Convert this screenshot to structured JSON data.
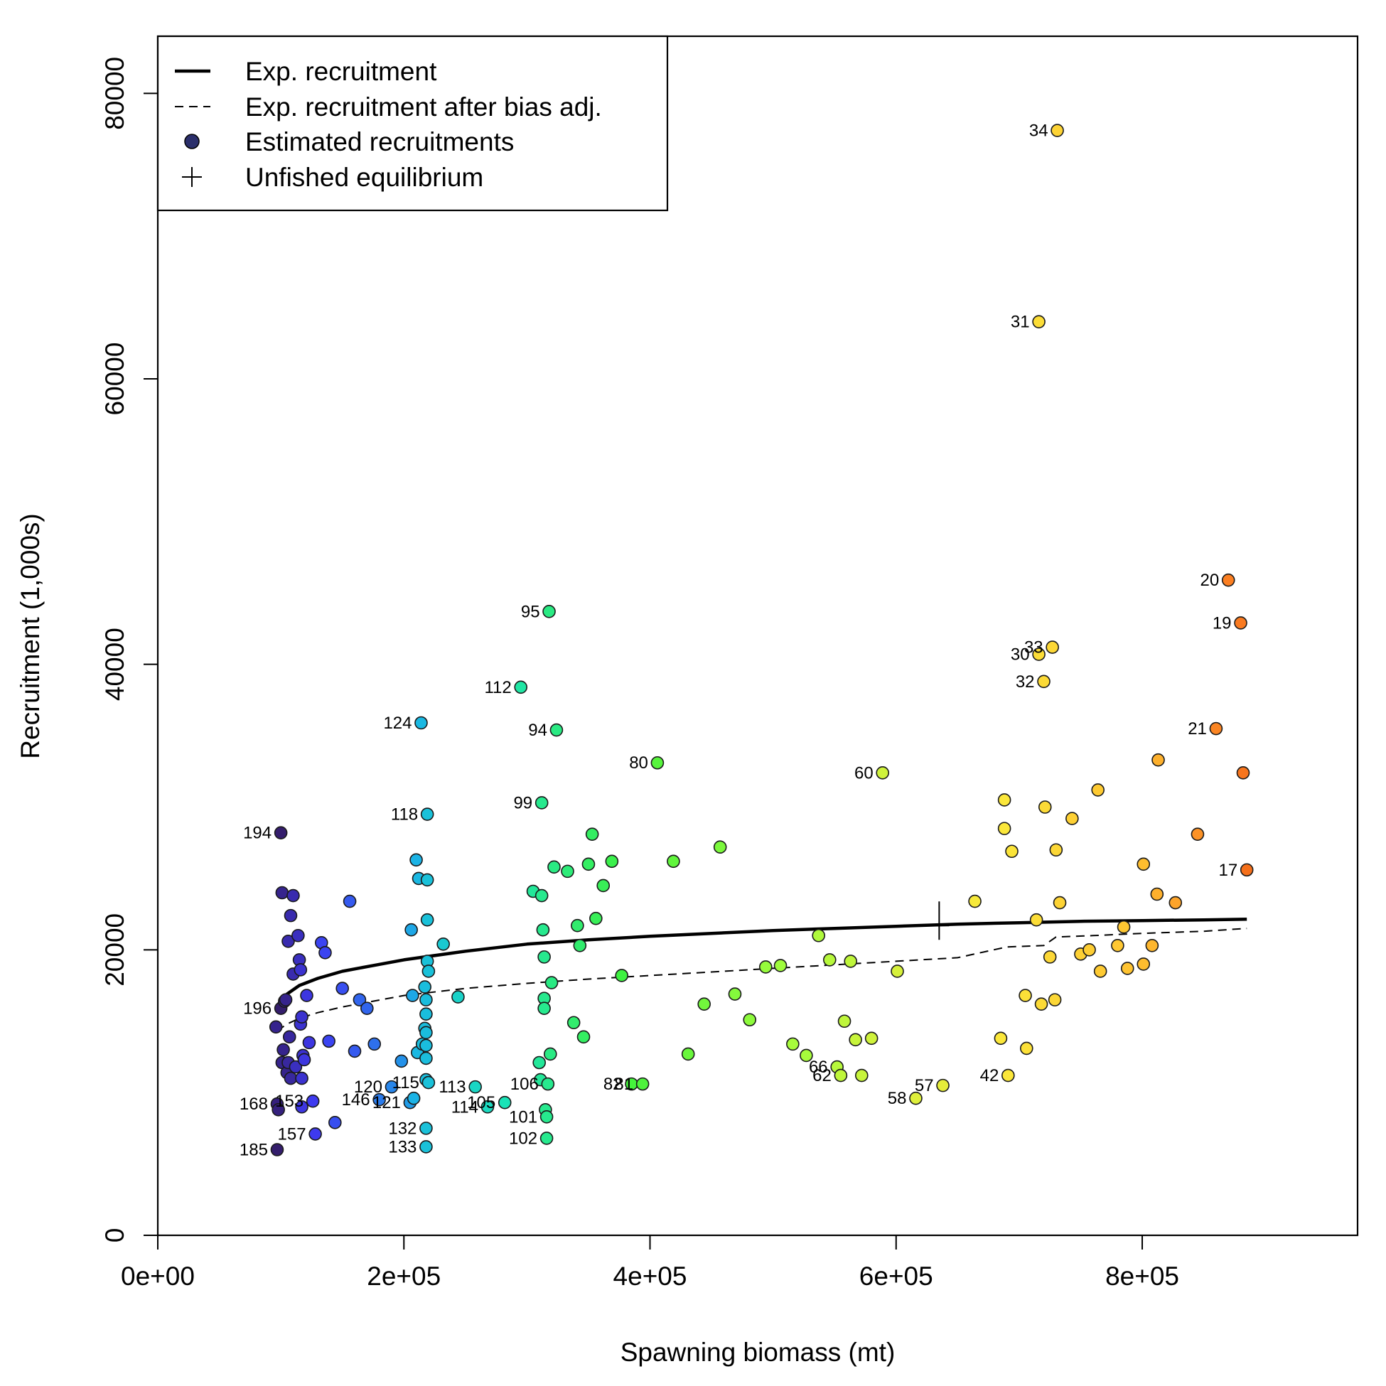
{
  "chart_data": {
    "type": "scatter",
    "xlabel": "Spawning biomass (mt)",
    "ylabel": "Recruitment (1,000s)",
    "xlim": [
      0,
      975000
    ],
    "ylim": [
      0,
      84000
    ],
    "x_ticks": [
      0,
      200000,
      400000,
      600000,
      800000
    ],
    "x_tick_labels": [
      "0e+00",
      "2e+05",
      "4e+05",
      "6e+05",
      "8e+05"
    ],
    "y_ticks": [
      0,
      20000,
      40000,
      60000,
      80000
    ],
    "y_tick_labels": [
      "0",
      "20000",
      "40000",
      "60000",
      "80000"
    ],
    "grid": false,
    "legend": {
      "position": "top-left",
      "entries": [
        {
          "label": "Exp. recruitment",
          "style": "solid-line"
        },
        {
          "label": "Exp. recruitment after bias adj.",
          "style": "dashed-line"
        },
        {
          "label": "Estimated recruitments",
          "style": "point"
        },
        {
          "label": "Unfished equilibrium",
          "style": "cross"
        }
      ]
    },
    "colormap": [
      "#30123b",
      "#3e3af2",
      "#1ab5e5",
      "#1ae4b6",
      "#40f23c",
      "#a4fc3c",
      "#fbe83a",
      "#fec431",
      "#fb8022",
      "#e4460a"
    ],
    "expected_recruitment": {
      "x": [
        97000,
        100000,
        105000,
        115000,
        130000,
        150000,
        175000,
        200000,
        250000,
        300000,
        350000,
        400000,
        450000,
        500000,
        550000,
        600000,
        650000,
        700000,
        750000,
        800000,
        850000,
        885000
      ],
      "y": [
        16100,
        16400,
        16900,
        17500,
        18000,
        18500,
        18900,
        19300,
        19900,
        20400,
        20700,
        20950,
        21150,
        21350,
        21500,
        21650,
        21800,
        21900,
        22000,
        22050,
        22100,
        22150
      ]
    },
    "expected_recruitment_bias_adj": {
      "x": [
        97000,
        100000,
        105000,
        115000,
        130000,
        150000,
        175000,
        200000,
        250000,
        300000,
        350000,
        400000,
        450000,
        500000,
        550000,
        600000,
        650000,
        690000,
        720000,
        730000,
        760000,
        800000,
        850000,
        885000
      ],
      "y": [
        14300,
        14500,
        14800,
        15200,
        15600,
        16000,
        16400,
        16800,
        17300,
        17650,
        17950,
        18200,
        18450,
        18700,
        18950,
        19200,
        19450,
        20200,
        20300,
        20900,
        21000,
        21150,
        21300,
        21500
      ]
    },
    "unfished_equilibrium": {
      "x": 635000,
      "y": 21700
    },
    "points": [
      {
        "x": 97000,
        "y": 6000,
        "label": "185",
        "c": 0.03
      },
      {
        "x": 100000,
        "y": 28200,
        "label": "194",
        "c": 0.03
      },
      {
        "x": 100000,
        "y": 15900,
        "label": "196",
        "c": 0.03
      },
      {
        "x": 97000,
        "y": 9200,
        "label": "168",
        "c": 0.04
      },
      {
        "x": 98000,
        "y": 8800,
        "label": "",
        "c": 0.04
      },
      {
        "x": 96000,
        "y": 14600,
        "label": "",
        "c": 0.05
      },
      {
        "x": 101000,
        "y": 24000,
        "label": "",
        "c": 0.05
      },
      {
        "x": 103000,
        "y": 16400,
        "label": "",
        "c": 0.05
      },
      {
        "x": 104000,
        "y": 16500,
        "label": "",
        "c": 0.05
      },
      {
        "x": 101000,
        "y": 12100,
        "label": "",
        "c": 0.05
      },
      {
        "x": 102000,
        "y": 13000,
        "label": "",
        "c": 0.05
      },
      {
        "x": 105000,
        "y": 11400,
        "label": "",
        "c": 0.05
      },
      {
        "x": 106000,
        "y": 12100,
        "label": "",
        "c": 0.06
      },
      {
        "x": 107000,
        "y": 13900,
        "label": "",
        "c": 0.06
      },
      {
        "x": 108000,
        "y": 11000,
        "label": "",
        "c": 0.06
      },
      {
        "x": 110000,
        "y": 23800,
        "label": "",
        "c": 0.07
      },
      {
        "x": 108000,
        "y": 22400,
        "label": "",
        "c": 0.07
      },
      {
        "x": 106000,
        "y": 20600,
        "label": "",
        "c": 0.07
      },
      {
        "x": 110000,
        "y": 18300,
        "label": "",
        "c": 0.07
      },
      {
        "x": 112000,
        "y": 11800,
        "label": "",
        "c": 0.08
      },
      {
        "x": 114000,
        "y": 21000,
        "label": "",
        "c": 0.08
      },
      {
        "x": 115000,
        "y": 19300,
        "label": "",
        "c": 0.08
      },
      {
        "x": 116000,
        "y": 18600,
        "label": "",
        "c": 0.09
      },
      {
        "x": 116000,
        "y": 14800,
        "label": "",
        "c": 0.09
      },
      {
        "x": 117000,
        "y": 15300,
        "label": "",
        "c": 0.09
      },
      {
        "x": 117000,
        "y": 11000,
        "label": "",
        "c": 0.09
      },
      {
        "x": 118000,
        "y": 12600,
        "label": "",
        "c": 0.09
      },
      {
        "x": 119000,
        "y": 12300,
        "label": "",
        "c": 0.1
      },
      {
        "x": 117000,
        "y": 9000,
        "label": "",
        "c": 0.1
      },
      {
        "x": 121000,
        "y": 16800,
        "label": "",
        "c": 0.1
      },
      {
        "x": 123000,
        "y": 13500,
        "label": "",
        "c": 0.1
      },
      {
        "x": 126000,
        "y": 9400,
        "label": "153",
        "c": 0.11
      },
      {
        "x": 128000,
        "y": 7100,
        "label": "157",
        "c": 0.11
      },
      {
        "x": 133000,
        "y": 20500,
        "label": "",
        "c": 0.12
      },
      {
        "x": 136000,
        "y": 19800,
        "label": "",
        "c": 0.12
      },
      {
        "x": 139000,
        "y": 13600,
        "label": "",
        "c": 0.12
      },
      {
        "x": 144000,
        "y": 7900,
        "label": "",
        "c": 0.13
      },
      {
        "x": 150000,
        "y": 17300,
        "label": "",
        "c": 0.13
      },
      {
        "x": 156000,
        "y": 23400,
        "label": "",
        "c": 0.14
      },
      {
        "x": 160000,
        "y": 12900,
        "label": "",
        "c": 0.14
      },
      {
        "x": 164000,
        "y": 16500,
        "label": "",
        "c": 0.15
      },
      {
        "x": 170000,
        "y": 15900,
        "label": "",
        "c": 0.15
      },
      {
        "x": 176000,
        "y": 13400,
        "label": "",
        "c": 0.16
      },
      {
        "x": 180000,
        "y": 9500,
        "label": "146",
        "c": 0.17
      },
      {
        "x": 190000,
        "y": 10400,
        "label": "120",
        "c": 0.18
      },
      {
        "x": 198000,
        "y": 12200,
        "label": "",
        "c": 0.19
      },
      {
        "x": 205000,
        "y": 9300,
        "label": "121",
        "c": 0.2
      },
      {
        "x": 206000,
        "y": 21400,
        "label": "",
        "c": 0.21
      },
      {
        "x": 207000,
        "y": 16800,
        "label": "",
        "c": 0.21
      },
      {
        "x": 208000,
        "y": 9600,
        "label": "",
        "c": 0.22
      },
      {
        "x": 210000,
        "y": 26300,
        "label": "",
        "c": 0.22
      },
      {
        "x": 211000,
        "y": 12800,
        "label": "",
        "c": 0.23
      },
      {
        "x": 212000,
        "y": 25000,
        "label": "",
        "c": 0.23
      },
      {
        "x": 214000,
        "y": 35900,
        "label": "124",
        "c": 0.23
      },
      {
        "x": 215000,
        "y": 13400,
        "label": "",
        "c": 0.24
      },
      {
        "x": 217000,
        "y": 17400,
        "label": "",
        "c": 0.24
      },
      {
        "x": 217000,
        "y": 14500,
        "label": "",
        "c": 0.24
      },
      {
        "x": 218000,
        "y": 16500,
        "label": "",
        "c": 0.24
      },
      {
        "x": 218000,
        "y": 15500,
        "label": "",
        "c": 0.24
      },
      {
        "x": 218000,
        "y": 14200,
        "label": "",
        "c": 0.24
      },
      {
        "x": 218000,
        "y": 13300,
        "label": "",
        "c": 0.24
      },
      {
        "x": 218000,
        "y": 12400,
        "label": "",
        "c": 0.24
      },
      {
        "x": 218000,
        "y": 10900,
        "label": "",
        "c": 0.24
      },
      {
        "x": 218000,
        "y": 7500,
        "label": "132",
        "c": 0.25
      },
      {
        "x": 218000,
        "y": 6200,
        "label": "133",
        "c": 0.25
      },
      {
        "x": 219000,
        "y": 29500,
        "label": "118",
        "c": 0.25
      },
      {
        "x": 219000,
        "y": 24900,
        "label": "",
        "c": 0.25
      },
      {
        "x": 219000,
        "y": 22100,
        "label": "",
        "c": 0.25
      },
      {
        "x": 219000,
        "y": 19200,
        "label": "",
        "c": 0.25
      },
      {
        "x": 220000,
        "y": 18500,
        "label": "",
        "c": 0.25
      },
      {
        "x": 220000,
        "y": 10700,
        "label": "115",
        "c": 0.25
      },
      {
        "x": 232000,
        "y": 20400,
        "label": "",
        "c": 0.27
      },
      {
        "x": 244000,
        "y": 16700,
        "label": "",
        "c": 0.29
      },
      {
        "x": 258000,
        "y": 10400,
        "label": "113",
        "c": 0.3
      },
      {
        "x": 268000,
        "y": 9000,
        "label": "114",
        "c": 0.31
      },
      {
        "x": 282000,
        "y": 9300,
        "label": "105",
        "c": 0.33
      },
      {
        "x": 295000,
        "y": 38400,
        "label": "112",
        "c": 0.35
      },
      {
        "x": 305000,
        "y": 24100,
        "label": "",
        "c": 0.36
      },
      {
        "x": 310000,
        "y": 12100,
        "label": "",
        "c": 0.36
      },
      {
        "x": 311000,
        "y": 10900,
        "label": "",
        "c": 0.36
      },
      {
        "x": 312000,
        "y": 23800,
        "label": "",
        "c": 0.37
      },
      {
        "x": 312000,
        "y": 30300,
        "label": "99",
        "c": 0.37
      },
      {
        "x": 313000,
        "y": 21400,
        "label": "",
        "c": 0.37
      },
      {
        "x": 314000,
        "y": 19500,
        "label": "",
        "c": 0.37
      },
      {
        "x": 314000,
        "y": 16600,
        "label": "",
        "c": 0.37
      },
      {
        "x": 314000,
        "y": 15900,
        "label": "",
        "c": 0.37
      },
      {
        "x": 315000,
        "y": 8800,
        "label": "",
        "c": 0.37
      },
      {
        "x": 316000,
        "y": 8300,
        "label": "101",
        "c": 0.37
      },
      {
        "x": 316000,
        "y": 6800,
        "label": "102",
        "c": 0.37
      },
      {
        "x": 317000,
        "y": 10600,
        "label": "106",
        "c": 0.37
      },
      {
        "x": 318000,
        "y": 43700,
        "label": "95",
        "c": 0.38
      },
      {
        "x": 319000,
        "y": 12700,
        "label": "",
        "c": 0.38
      },
      {
        "x": 320000,
        "y": 17700,
        "label": "",
        "c": 0.38
      },
      {
        "x": 322000,
        "y": 25800,
        "label": "",
        "c": 0.38
      },
      {
        "x": 324000,
        "y": 35400,
        "label": "94",
        "c": 0.38
      },
      {
        "x": 333000,
        "y": 25500,
        "label": "",
        "c": 0.39
      },
      {
        "x": 338000,
        "y": 14900,
        "label": "",
        "c": 0.4
      },
      {
        "x": 341000,
        "y": 21700,
        "label": "",
        "c": 0.4
      },
      {
        "x": 343000,
        "y": 20300,
        "label": "",
        "c": 0.4
      },
      {
        "x": 346000,
        "y": 13900,
        "label": "",
        "c": 0.41
      },
      {
        "x": 350000,
        "y": 26000,
        "label": "",
        "c": 0.41
      },
      {
        "x": 353000,
        "y": 28100,
        "label": "",
        "c": 0.41
      },
      {
        "x": 356000,
        "y": 22200,
        "label": "",
        "c": 0.42
      },
      {
        "x": 362000,
        "y": 24500,
        "label": "",
        "c": 0.42
      },
      {
        "x": 369000,
        "y": 26200,
        "label": "",
        "c": 0.43
      },
      {
        "x": 377000,
        "y": 18200,
        "label": "",
        "c": 0.44
      },
      {
        "x": 385000,
        "y": 10600,
        "label": "82",
        "c": 0.45
      },
      {
        "x": 394000,
        "y": 10600,
        "label": "81",
        "c": 0.46
      },
      {
        "x": 406000,
        "y": 33100,
        "label": "80",
        "c": 0.47
      },
      {
        "x": 419000,
        "y": 26200,
        "label": "",
        "c": 0.48
      },
      {
        "x": 431000,
        "y": 12700,
        "label": "",
        "c": 0.49
      },
      {
        "x": 444000,
        "y": 16200,
        "label": "",
        "c": 0.5
      },
      {
        "x": 457000,
        "y": 27200,
        "label": "",
        "c": 0.51
      },
      {
        "x": 469000,
        "y": 16900,
        "label": "",
        "c": 0.52
      },
      {
        "x": 481000,
        "y": 15100,
        "label": "",
        "c": 0.53
      },
      {
        "x": 494000,
        "y": 18800,
        "label": "",
        "c": 0.54
      },
      {
        "x": 506000,
        "y": 18900,
        "label": "",
        "c": 0.55
      },
      {
        "x": 516000,
        "y": 13400,
        "label": "",
        "c": 0.56
      },
      {
        "x": 527000,
        "y": 12600,
        "label": "",
        "c": 0.56
      },
      {
        "x": 537000,
        "y": 21000,
        "label": "",
        "c": 0.57
      },
      {
        "x": 546000,
        "y": 19300,
        "label": "",
        "c": 0.58
      },
      {
        "x": 552000,
        "y": 11800,
        "label": "66",
        "c": 0.58
      },
      {
        "x": 555000,
        "y": 11200,
        "label": "62",
        "c": 0.59
      },
      {
        "x": 558000,
        "y": 15000,
        "label": "",
        "c": 0.59
      },
      {
        "x": 563000,
        "y": 19200,
        "label": "",
        "c": 0.59
      },
      {
        "x": 567000,
        "y": 13700,
        "label": "",
        "c": 0.6
      },
      {
        "x": 572000,
        "y": 11200,
        "label": "",
        "c": 0.6
      },
      {
        "x": 580000,
        "y": 13800,
        "label": "",
        "c": 0.61
      },
      {
        "x": 589000,
        "y": 32400,
        "label": "60",
        "c": 0.61
      },
      {
        "x": 601000,
        "y": 18500,
        "label": "",
        "c": 0.62
      },
      {
        "x": 616000,
        "y": 9600,
        "label": "58",
        "c": 0.63
      },
      {
        "x": 638000,
        "y": 10500,
        "label": "57",
        "c": 0.64
      },
      {
        "x": 664000,
        "y": 23400,
        "label": "",
        "c": 0.66
      },
      {
        "x": 685000,
        "y": 13800,
        "label": "",
        "c": 0.67
      },
      {
        "x": 688000,
        "y": 30500,
        "label": "",
        "c": 0.67
      },
      {
        "x": 688000,
        "y": 28500,
        "label": "",
        "c": 0.67
      },
      {
        "x": 691000,
        "y": 11200,
        "label": "42",
        "c": 0.67
      },
      {
        "x": 694000,
        "y": 26900,
        "label": "",
        "c": 0.68
      },
      {
        "x": 705000,
        "y": 16800,
        "label": "",
        "c": 0.69
      },
      {
        "x": 706000,
        "y": 13100,
        "label": "",
        "c": 0.69
      },
      {
        "x": 714000,
        "y": 22100,
        "label": "",
        "c": 0.7
      },
      {
        "x": 716000,
        "y": 40700,
        "label": "30",
        "c": 0.7
      },
      {
        "x": 716000,
        "y": 64000,
        "label": "31",
        "c": 0.7
      },
      {
        "x": 718000,
        "y": 16200,
        "label": "",
        "c": 0.71
      },
      {
        "x": 720000,
        "y": 38800,
        "label": "32",
        "c": 0.71
      },
      {
        "x": 721000,
        "y": 30000,
        "label": "",
        "c": 0.71
      },
      {
        "x": 725000,
        "y": 19500,
        "label": "",
        "c": 0.72
      },
      {
        "x": 727000,
        "y": 41200,
        "label": "33",
        "c": 0.72
      },
      {
        "x": 729000,
        "y": 16500,
        "label": "",
        "c": 0.72
      },
      {
        "x": 730000,
        "y": 27000,
        "label": "",
        "c": 0.72
      },
      {
        "x": 731000,
        "y": 77400,
        "label": "34",
        "c": 0.73
      },
      {
        "x": 733000,
        "y": 23300,
        "label": "",
        "c": 0.73
      },
      {
        "x": 743000,
        "y": 29200,
        "label": "",
        "c": 0.74
      },
      {
        "x": 750000,
        "y": 19700,
        "label": "",
        "c": 0.74
      },
      {
        "x": 757000,
        "y": 20000,
        "label": "",
        "c": 0.75
      },
      {
        "x": 764000,
        "y": 31200,
        "label": "",
        "c": 0.76
      },
      {
        "x": 766000,
        "y": 18500,
        "label": "",
        "c": 0.76
      },
      {
        "x": 780000,
        "y": 20300,
        "label": "",
        "c": 0.77
      },
      {
        "x": 785000,
        "y": 21600,
        "label": "",
        "c": 0.77
      },
      {
        "x": 788000,
        "y": 18700,
        "label": "",
        "c": 0.78
      },
      {
        "x": 801000,
        "y": 19000,
        "label": "",
        "c": 0.79
      },
      {
        "x": 801000,
        "y": 26000,
        "label": "",
        "c": 0.79
      },
      {
        "x": 808000,
        "y": 20300,
        "label": "",
        "c": 0.8
      },
      {
        "x": 812000,
        "y": 23900,
        "label": "",
        "c": 0.81
      },
      {
        "x": 813000,
        "y": 33300,
        "label": "",
        "c": 0.81
      },
      {
        "x": 827000,
        "y": 23300,
        "label": "",
        "c": 0.83
      },
      {
        "x": 845000,
        "y": 28100,
        "label": "",
        "c": 0.86
      },
      {
        "x": 860000,
        "y": 35500,
        "label": "21",
        "c": 0.88
      },
      {
        "x": 870000,
        "y": 45900,
        "label": "20",
        "c": 0.89
      },
      {
        "x": 880000,
        "y": 42900,
        "label": "19",
        "c": 0.9
      },
      {
        "x": 882000,
        "y": 32400,
        "label": "",
        "c": 0.91
      },
      {
        "x": 885000,
        "y": 25600,
        "label": "17",
        "c": 0.92
      }
    ]
  }
}
